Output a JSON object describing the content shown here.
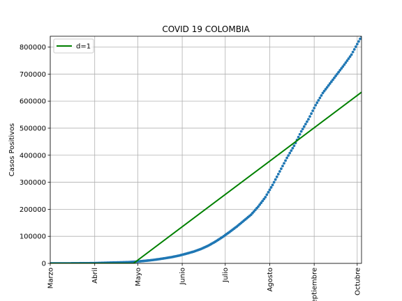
{
  "chart_data": {
    "type": "scatter",
    "title": "COVID 19 COLOMBIA",
    "xlabel": "",
    "ylabel": "Casos Positivos",
    "x_domain": [
      "2020-03-01",
      "2020-10-04"
    ],
    "ylim": [
      0,
      840000
    ],
    "grid": true,
    "legend_position": "top-left",
    "x_ticks": [
      {
        "date": "2020-03-01",
        "label": "Marzo"
      },
      {
        "date": "2020-04-01",
        "label": "Abril"
      },
      {
        "date": "2020-05-01",
        "label": "Mayo"
      },
      {
        "date": "2020-06-01",
        "label": "Junio"
      },
      {
        "date": "2020-07-01",
        "label": "Julio"
      },
      {
        "date": "2020-08-01",
        "label": "Agosto"
      },
      {
        "date": "2020-09-01",
        "label": "Septiembre"
      },
      {
        "date": "2020-10-01",
        "label": "Octubre"
      }
    ],
    "y_ticks": [
      {
        "value": 0,
        "label": "0"
      },
      {
        "value": 100000,
        "label": "100000"
      },
      {
        "value": 200000,
        "label": "200000"
      },
      {
        "value": 300000,
        "label": "300000"
      },
      {
        "value": 400000,
        "label": "400000"
      },
      {
        "value": 500000,
        "label": "500000"
      },
      {
        "value": 600000,
        "label": "600000"
      },
      {
        "value": 700000,
        "label": "700000"
      },
      {
        "value": 800000,
        "label": "800000"
      }
    ],
    "series": [
      {
        "kind": "scatter",
        "color": "#1f77b4",
        "x": [
          "2020-03-01",
          "2020-03-16",
          "2020-03-31",
          "2020-04-10",
          "2020-04-20",
          "2020-04-25",
          "2020-04-30",
          "2020-05-05",
          "2020-05-10",
          "2020-05-15",
          "2020-05-20",
          "2020-05-25",
          "2020-05-30",
          "2020-06-04",
          "2020-06-09",
          "2020-06-14",
          "2020-06-19",
          "2020-06-24",
          "2020-06-29",
          "2020-07-04",
          "2020-07-09",
          "2020-07-14",
          "2020-07-19",
          "2020-07-24",
          "2020-07-29",
          "2020-08-03",
          "2020-08-08",
          "2020-08-13",
          "2020-08-18",
          "2020-08-23",
          "2020-08-28",
          "2020-09-02",
          "2020-09-07",
          "2020-09-12",
          "2020-09-17",
          "2020-09-22",
          "2020-09-27",
          "2020-10-04"
        ],
        "y": [
          0,
          100,
          900,
          2500,
          3800,
          4800,
          6500,
          8800,
          11500,
          15000,
          19000,
          23500,
          29000,
          36000,
          43500,
          53000,
          65000,
          80000,
          97000,
          116000,
          136000,
          158000,
          180000,
          210000,
          245000,
          290000,
          340000,
          390000,
          435000,
          488000,
          533000,
          585000,
          630000,
          665000,
          700000,
          735000,
          772000,
          840000
        ]
      },
      {
        "kind": "line",
        "name": "d=1",
        "color": "#008000",
        "x": [
          "2020-03-01",
          "2020-04-28",
          "2020-10-04"
        ],
        "y": [
          0,
          0,
          633000
        ]
      }
    ]
  }
}
